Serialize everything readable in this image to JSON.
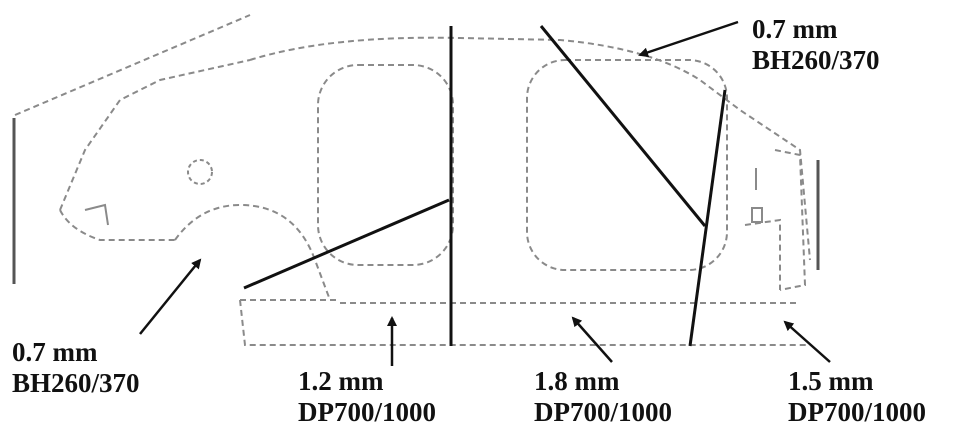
{
  "callouts": {
    "roof": {
      "thickness": "0.7 mm",
      "grade": "BH260/370"
    },
    "fender": {
      "thickness": "0.7 mm",
      "grade": "BH260/370"
    },
    "rocker": {
      "thickness": "1.2 mm",
      "grade": "DP700/1000"
    },
    "cpillar": {
      "thickness": "1.8 mm",
      "grade": "DP700/1000"
    },
    "rear": {
      "thickness": "1.5 mm",
      "grade": "DP700/1000"
    }
  },
  "colors": {
    "outline": "#8a8a8a",
    "section_lines": "#111111",
    "text": "#111111"
  }
}
